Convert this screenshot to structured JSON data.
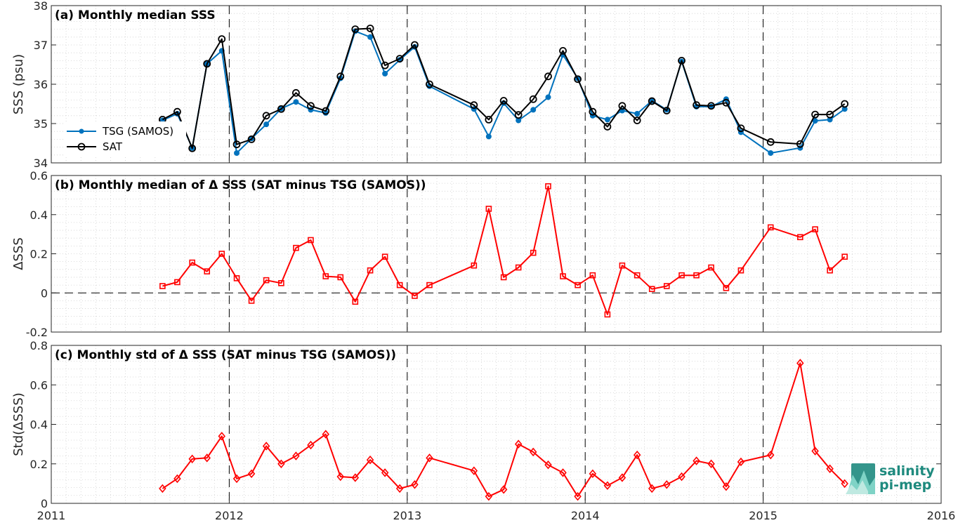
{
  "chart_data": [
    {
      "type": "line",
      "title": "(a) Monthly median SSS",
      "ylabel": "SSS (psu)",
      "ylim": [
        34,
        38
      ],
      "yticks": [
        34,
        35,
        36,
        37,
        38
      ],
      "xlim": [
        2011,
        2016
      ],
      "xticks": [
        2011,
        2012,
        2013,
        2014,
        2015,
        2016
      ],
      "grid": "dotted",
      "legend_position": "left",
      "series": [
        {
          "name": "TSG (SAMOS)",
          "color": "#0072bd",
          "marker": "dot",
          "x": [
            2011.625,
            2011.708,
            2011.792,
            2011.875,
            2011.958,
            2012.042,
            2012.125,
            2012.208,
            2012.292,
            2012.375,
            2012.458,
            2012.542,
            2012.625,
            2012.708,
            2012.792,
            2012.875,
            2012.958,
            2013.042,
            2013.125,
            2013.375,
            2013.458,
            2013.542,
            2013.625,
            2013.708,
            2013.792,
            2013.875,
            2013.958,
            2014.042,
            2014.125,
            2014.208,
            2014.292,
            2014.375,
            2014.458,
            2014.542,
            2014.625,
            2014.708,
            2014.792,
            2014.875,
            2015.042,
            2015.208,
            2015.292,
            2015.375,
            2015.458
          ],
          "values": [
            35.08,
            35.25,
            34.38,
            36.52,
            36.85,
            34.25,
            34.62,
            34.98,
            35.38,
            35.55,
            35.35,
            35.27,
            36.15,
            37.35,
            37.2,
            36.27,
            36.62,
            36.95,
            35.95,
            35.37,
            34.67,
            35.52,
            35.08,
            35.35,
            35.67,
            36.75,
            36.15,
            35.2,
            35.1,
            35.33,
            35.25,
            35.58,
            35.35,
            36.58,
            35.43,
            35.43,
            35.62,
            34.78,
            34.25,
            34.38,
            35.07,
            35.1,
            35.37
          ]
        },
        {
          "name": "SAT",
          "color": "#000000",
          "marker": "circle",
          "x": [
            2011.625,
            2011.708,
            2011.792,
            2011.875,
            2011.958,
            2012.042,
            2012.125,
            2012.208,
            2012.292,
            2012.375,
            2012.458,
            2012.542,
            2012.625,
            2012.708,
            2012.792,
            2012.875,
            2012.958,
            2013.042,
            2013.125,
            2013.375,
            2013.458,
            2013.542,
            2013.625,
            2013.708,
            2013.792,
            2013.875,
            2013.958,
            2014.042,
            2014.125,
            2014.208,
            2014.292,
            2014.375,
            2014.458,
            2014.542,
            2014.625,
            2014.708,
            2014.792,
            2014.875,
            2015.042,
            2015.208,
            2015.292,
            2015.375,
            2015.458
          ],
          "values": [
            35.1,
            35.3,
            34.37,
            36.52,
            37.15,
            34.47,
            34.6,
            35.2,
            35.37,
            35.78,
            35.45,
            35.32,
            36.2,
            37.4,
            37.42,
            36.48,
            36.65,
            37.0,
            36.0,
            35.47,
            35.1,
            35.58,
            35.22,
            35.62,
            36.2,
            36.85,
            36.13,
            35.3,
            34.92,
            35.45,
            35.08,
            35.57,
            35.33,
            36.6,
            35.47,
            35.45,
            35.53,
            34.88,
            34.53,
            34.48,
            35.23,
            35.23,
            35.5
          ]
        }
      ]
    },
    {
      "type": "line",
      "title": "(b) Monthly median of Δ SSS (SAT minus TSG (SAMOS))",
      "ylabel": "ΔSSS",
      "ylim": [
        -0.2,
        0.6
      ],
      "yticks": [
        -0.2,
        0,
        0.2,
        0.4,
        0.6
      ],
      "ytick_labels": [
        "-0.2",
        "0",
        "0.2",
        "0.4",
        "0.6"
      ],
      "xlim": [
        2011,
        2016
      ],
      "xticks": [
        2011,
        2012,
        2013,
        2014,
        2015,
        2016
      ],
      "grid": "dotted",
      "series": [
        {
          "color": "#ff0000",
          "marker": "square",
          "x": [
            2011.625,
            2011.708,
            2011.792,
            2011.875,
            2011.958,
            2012.042,
            2012.125,
            2012.208,
            2012.292,
            2012.375,
            2012.458,
            2012.542,
            2012.625,
            2012.708,
            2012.792,
            2012.875,
            2012.958,
            2013.042,
            2013.125,
            2013.375,
            2013.458,
            2013.542,
            2013.625,
            2013.708,
            2013.792,
            2013.875,
            2013.958,
            2014.042,
            2014.125,
            2014.208,
            2014.292,
            2014.375,
            2014.458,
            2014.542,
            2014.625,
            2014.708,
            2014.792,
            2014.875,
            2015.042,
            2015.208,
            2015.292,
            2015.375,
            2015.458
          ],
          "values": [
            0.035,
            0.055,
            0.155,
            0.11,
            0.2,
            0.075,
            -0.04,
            0.065,
            0.05,
            0.23,
            0.27,
            0.085,
            0.08,
            -0.045,
            0.115,
            0.185,
            0.04,
            -0.015,
            0.04,
            0.14,
            0.43,
            0.08,
            0.13,
            0.205,
            0.545,
            0.085,
            0.04,
            0.09,
            -0.11,
            0.14,
            0.09,
            0.02,
            0.035,
            0.09,
            0.09,
            0.13,
            0.025,
            0.115,
            0.335,
            0.285,
            0.325,
            0.115,
            0.185
          ]
        }
      ]
    },
    {
      "type": "line",
      "title": "(c) Monthly std of Δ SSS (SAT minus TSG (SAMOS))",
      "ylabel": "Std(ΔSSS)",
      "ylim": [
        0,
        0.8
      ],
      "yticks": [
        0,
        0.2,
        0.4,
        0.6,
        0.8
      ],
      "ytick_labels": [
        "0",
        "0.2",
        "0.4",
        "0.6",
        "0.8"
      ],
      "xlim": [
        2011,
        2016
      ],
      "xticks": [
        2011,
        2012,
        2013,
        2014,
        2015,
        2016
      ],
      "xtick_labels": [
        "2011",
        "2012",
        "2013",
        "2014",
        "2015",
        "2016"
      ],
      "grid": "dotted",
      "series": [
        {
          "color": "#ff0000",
          "marker": "diamond",
          "x": [
            2011.625,
            2011.708,
            2011.792,
            2011.875,
            2011.958,
            2012.042,
            2012.125,
            2012.208,
            2012.292,
            2012.375,
            2012.458,
            2012.542,
            2012.625,
            2012.708,
            2012.792,
            2012.875,
            2012.958,
            2013.042,
            2013.125,
            2013.375,
            2013.458,
            2013.542,
            2013.625,
            2013.708,
            2013.792,
            2013.875,
            2013.958,
            2014.042,
            2014.125,
            2014.208,
            2014.292,
            2014.375,
            2014.458,
            2014.542,
            2014.625,
            2014.708,
            2014.792,
            2014.875,
            2015.042,
            2015.208,
            2015.292,
            2015.375,
            2015.458
          ],
          "values": [
            0.075,
            0.125,
            0.225,
            0.23,
            0.34,
            0.125,
            0.15,
            0.29,
            0.2,
            0.24,
            0.295,
            0.35,
            0.135,
            0.13,
            0.22,
            0.155,
            0.075,
            0.095,
            0.23,
            0.165,
            0.035,
            0.07,
            0.3,
            0.26,
            0.195,
            0.155,
            0.035,
            0.15,
            0.09,
            0.13,
            0.245,
            0.075,
            0.095,
            0.135,
            0.215,
            0.2,
            0.085,
            0.21,
            0.245,
            0.71,
            0.265,
            0.175,
            0.1
          ]
        }
      ]
    }
  ],
  "logo": {
    "line1": "salinity",
    "line2": "pi-mep",
    "color": "#1e8a7e"
  }
}
